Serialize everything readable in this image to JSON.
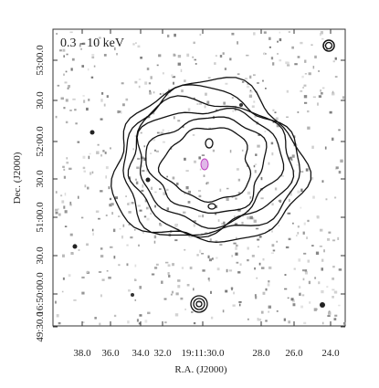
{
  "image": {
    "label": "0.3 - 10 keV",
    "x_axis": {
      "title": "R.A. (J2000)",
      "ticks": [
        "38.0",
        "36.0",
        "34.0",
        "32.0",
        "19:11:30.0",
        "28.0",
        "26.0",
        "24.0"
      ]
    },
    "y_axis": {
      "title": "Dec. (J2000)",
      "ticks": [
        "53:00.0",
        "30.0",
        "52:00.0",
        "30.0",
        "51:00.0",
        "30.0",
        "16:50:00.0",
        "49:30.0"
      ]
    }
  }
}
